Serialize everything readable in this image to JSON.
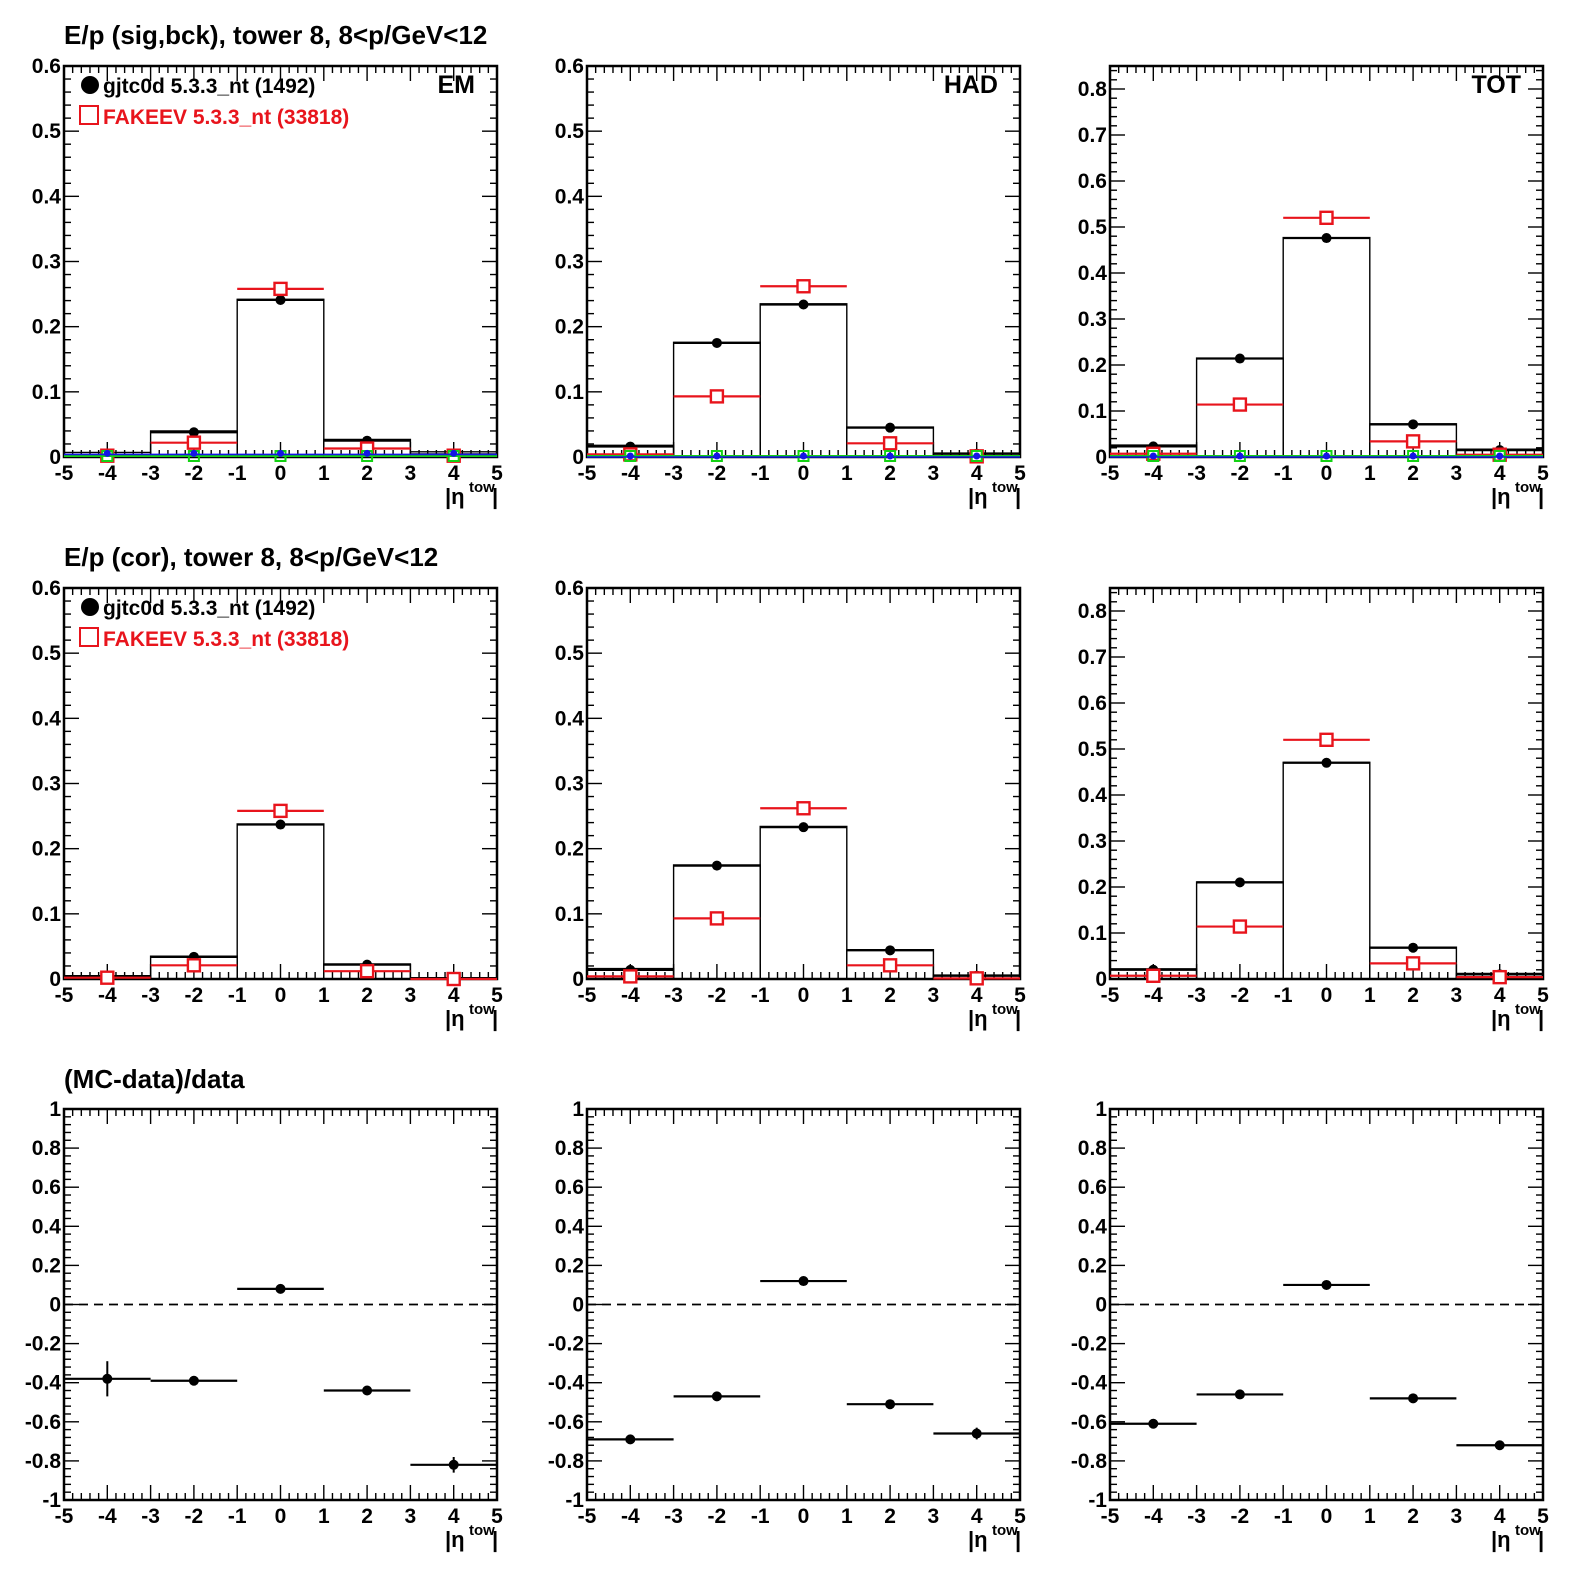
{
  "colors": {
    "data": "#000000",
    "mc": "#e8141c",
    "green": "#14d214",
    "blue": "#1414e6"
  },
  "rows": [
    {
      "title": "E/p (sig,bck), tower 8,  8<p/GeV<12"
    },
    {
      "title": "E/p (cor), tower 8,  8<p/GeV<12"
    },
    {
      "title": "(MC-data)/data"
    }
  ],
  "legend": {
    "data_label": "gjtc0d 5.3.3_nt (1492)",
    "mc_label": "FAKEEV 5.3.3_nt (33818)"
  },
  "chart_data": [
    {
      "type": "scatter",
      "row": 0,
      "col": 0,
      "panel_label": "EM",
      "legend": true,
      "xlabel": "|η^tow|",
      "xlim": [
        -5,
        5
      ],
      "ylim": [
        0,
        0.6
      ],
      "xticks": [
        -5,
        -4,
        -3,
        -2,
        -1,
        0,
        1,
        2,
        3,
        4,
        5
      ],
      "yticks": [
        0,
        0.1,
        0.2,
        0.3,
        0.4,
        0.5,
        0.6
      ],
      "x": [
        -4,
        -2,
        0,
        2,
        4
      ],
      "series": [
        {
          "role": "data",
          "marker": "dot",
          "values": [
            0.003,
            0.038,
            0.241,
            0.025,
            0.004
          ]
        },
        {
          "role": "mc",
          "marker": "open-square",
          "values": [
            0.002,
            0.022,
            0.258,
            0.013,
            0.002
          ]
        },
        {
          "role": "bg-green",
          "marker": "open-square-small",
          "values": [
            0,
            0,
            0,
            0,
            0
          ]
        },
        {
          "role": "bg-blue",
          "marker": "dot-small",
          "values": [
            0.004,
            0.004,
            0.004,
            0.004,
            0.004
          ]
        }
      ],
      "hist_outline": [
        0.007,
        0.04,
        0.242,
        0.027,
        0.008
      ]
    },
    {
      "type": "scatter",
      "row": 0,
      "col": 1,
      "panel_label": "HAD",
      "legend": false,
      "xlabel": "|η^tow|",
      "xlim": [
        -5,
        5
      ],
      "ylim": [
        0,
        0.6
      ],
      "xticks": [
        -5,
        -4,
        -3,
        -2,
        -1,
        0,
        1,
        2,
        3,
        4,
        5
      ],
      "yticks": [
        0,
        0.1,
        0.2,
        0.3,
        0.4,
        0.5,
        0.6
      ],
      "x": [
        -4,
        -2,
        0,
        2,
        4
      ],
      "series": [
        {
          "role": "data",
          "marker": "dot",
          "values": [
            0.016,
            0.175,
            0.234,
            0.045,
            0.005
          ]
        },
        {
          "role": "mc",
          "marker": "open-square",
          "values": [
            0.004,
            0.093,
            0.262,
            0.021,
            0.001
          ]
        },
        {
          "role": "bg-green",
          "marker": "open-square-small",
          "values": [
            0,
            0,
            0,
            0,
            0
          ]
        },
        {
          "role": "bg-blue",
          "marker": "dot-small",
          "values": [
            0,
            0,
            0,
            0,
            0
          ]
        }
      ],
      "hist_outline": [
        0.018,
        0.176,
        0.235,
        0.046,
        0.006
      ]
    },
    {
      "type": "scatter",
      "row": 0,
      "col": 2,
      "panel_label": "TOT",
      "legend": false,
      "xlabel": "|η^tow|",
      "xlim": [
        -5,
        5
      ],
      "ylim": [
        0,
        0.85
      ],
      "xticks": [
        -5,
        -4,
        -3,
        -2,
        -1,
        0,
        1,
        2,
        3,
        4,
        5
      ],
      "yticks": [
        0,
        0.1,
        0.2,
        0.3,
        0.4,
        0.5,
        0.6,
        0.7,
        0.8
      ],
      "x": [
        -4,
        -2,
        0,
        2,
        4
      ],
      "series": [
        {
          "role": "data",
          "marker": "dot",
          "values": [
            0.023,
            0.214,
            0.476,
            0.071,
            0.015
          ]
        },
        {
          "role": "mc",
          "marker": "open-square",
          "values": [
            0.007,
            0.114,
            0.52,
            0.034,
            0.005
          ]
        },
        {
          "role": "bg-green",
          "marker": "open-square-small",
          "values": [
            0,
            0,
            0,
            0,
            0
          ]
        },
        {
          "role": "bg-blue",
          "marker": "dot-small",
          "values": [
            0,
            0,
            0,
            0,
            0
          ]
        }
      ],
      "hist_outline": [
        0.026,
        0.215,
        0.477,
        0.072,
        0.017
      ]
    },
    {
      "type": "scatter",
      "row": 1,
      "col": 0,
      "panel_label": "",
      "legend": true,
      "xlabel": "|η^tow|",
      "xlim": [
        -5,
        5
      ],
      "ylim": [
        0,
        0.6
      ],
      "xticks": [
        -5,
        -4,
        -3,
        -2,
        -1,
        0,
        1,
        2,
        3,
        4,
        5
      ],
      "yticks": [
        0,
        0.1,
        0.2,
        0.3,
        0.4,
        0.5,
        0.6
      ],
      "x": [
        -4,
        -2,
        0,
        2,
        4
      ],
      "series": [
        {
          "role": "data",
          "marker": "dot",
          "values": [
            0.003,
            0.034,
            0.237,
            0.022,
            0.001
          ]
        },
        {
          "role": "mc",
          "marker": "open-square",
          "values": [
            0.002,
            0.021,
            0.258,
            0.012,
            0.0
          ]
        }
      ],
      "hist_outline": [
        0.005,
        0.035,
        0.238,
        0.023,
        0.002
      ]
    },
    {
      "type": "scatter",
      "row": 1,
      "col": 1,
      "panel_label": "",
      "legend": false,
      "xlabel": "|η^tow|",
      "xlim": [
        -5,
        5
      ],
      "ylim": [
        0,
        0.6
      ],
      "xticks": [
        -5,
        -4,
        -3,
        -2,
        -1,
        0,
        1,
        2,
        3,
        4,
        5
      ],
      "yticks": [
        0,
        0.1,
        0.2,
        0.3,
        0.4,
        0.5,
        0.6
      ],
      "x": [
        -4,
        -2,
        0,
        2,
        4
      ],
      "series": [
        {
          "role": "data",
          "marker": "dot",
          "values": [
            0.014,
            0.174,
            0.233,
            0.044,
            0.005
          ]
        },
        {
          "role": "mc",
          "marker": "open-square",
          "values": [
            0.004,
            0.093,
            0.262,
            0.021,
            0.001
          ]
        }
      ],
      "hist_outline": [
        0.016,
        0.175,
        0.234,
        0.045,
        0.006
      ]
    },
    {
      "type": "scatter",
      "row": 1,
      "col": 2,
      "panel_label": "",
      "legend": false,
      "xlabel": "|η^tow|",
      "xlim": [
        -5,
        5
      ],
      "ylim": [
        0,
        0.85
      ],
      "xticks": [
        -5,
        -4,
        -3,
        -2,
        -1,
        0,
        1,
        2,
        3,
        4,
        5
      ],
      "yticks": [
        0,
        0.1,
        0.2,
        0.3,
        0.4,
        0.5,
        0.6,
        0.7,
        0.8
      ],
      "x": [
        -4,
        -2,
        0,
        2,
        4
      ],
      "series": [
        {
          "role": "data",
          "marker": "dot",
          "values": [
            0.02,
            0.21,
            0.47,
            0.068,
            0.01
          ]
        },
        {
          "role": "mc",
          "marker": "open-square",
          "values": [
            0.007,
            0.114,
            0.52,
            0.034,
            0.004
          ]
        }
      ],
      "hist_outline": [
        0.022,
        0.211,
        0.471,
        0.069,
        0.012
      ]
    },
    {
      "type": "scatter",
      "row": 2,
      "col": 0,
      "panel_label": "",
      "legend": false,
      "xlabel": "|η^tow|",
      "xlim": [
        -5,
        5
      ],
      "ylim": [
        -1,
        1
      ],
      "xticks": [
        -5,
        -4,
        -3,
        -2,
        -1,
        0,
        1,
        2,
        3,
        4,
        5
      ],
      "yticks": [
        -1,
        -0.8,
        -0.6,
        -0.4,
        -0.2,
        0,
        0.2,
        0.4,
        0.6,
        0.8,
        1
      ],
      "x": [
        -4,
        -2,
        0,
        2,
        4
      ],
      "reference_line": 0,
      "series": [
        {
          "role": "data",
          "marker": "dot",
          "values": [
            -0.38,
            -0.39,
            0.08,
            -0.44,
            -0.82
          ],
          "errors": [
            0.09,
            0.02,
            0.01,
            0.02,
            0.04
          ]
        }
      ]
    },
    {
      "type": "scatter",
      "row": 2,
      "col": 1,
      "panel_label": "",
      "legend": false,
      "xlabel": "|η^tow|",
      "xlim": [
        -5,
        5
      ],
      "ylim": [
        -1,
        1
      ],
      "xticks": [
        -5,
        -4,
        -3,
        -2,
        -1,
        0,
        1,
        2,
        3,
        4,
        5
      ],
      "yticks": [
        -1,
        -0.8,
        -0.6,
        -0.4,
        -0.2,
        0,
        0.2,
        0.4,
        0.6,
        0.8,
        1
      ],
      "x": [
        -4,
        -2,
        0,
        2,
        4
      ],
      "reference_line": 0,
      "series": [
        {
          "role": "data",
          "marker": "dot",
          "values": [
            -0.69,
            -0.47,
            0.12,
            -0.51,
            -0.66
          ],
          "errors": [
            0.02,
            0.01,
            0.02,
            0.01,
            0.03
          ]
        }
      ]
    },
    {
      "type": "scatter",
      "row": 2,
      "col": 2,
      "panel_label": "",
      "legend": false,
      "xlabel": "|η^tow|",
      "xlim": [
        -5,
        5
      ],
      "ylim": [
        -1,
        1
      ],
      "xticks": [
        -5,
        -4,
        -3,
        -2,
        -1,
        0,
        1,
        2,
        3,
        4,
        5
      ],
      "yticks": [
        -1,
        -0.8,
        -0.6,
        -0.4,
        -0.2,
        0,
        0.2,
        0.4,
        0.6,
        0.8,
        1
      ],
      "x": [
        -4,
        -2,
        0,
        2,
        4
      ],
      "reference_line": 0,
      "series": [
        {
          "role": "data",
          "marker": "dot",
          "values": [
            -0.61,
            -0.46,
            0.1,
            -0.48,
            -0.72
          ],
          "errors": [
            0.01,
            0.01,
            0.01,
            0.01,
            0.01
          ]
        }
      ]
    }
  ]
}
